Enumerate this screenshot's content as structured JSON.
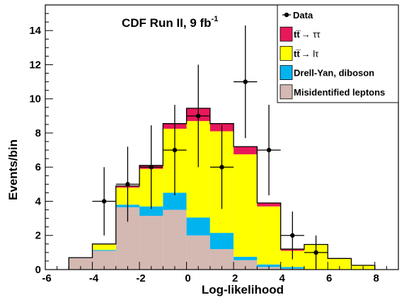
{
  "chart_data": {
    "type": "bar",
    "subtype": "stacked-histogram-with-data-points",
    "title": "CDF Run II, 9 fb",
    "title_superscript": "-1",
    "xlabel": "Log-likelihood",
    "ylabel": "Events/bin",
    "xlim": [
      -6,
      9
    ],
    "ylim": [
      0,
      15.5
    ],
    "xticks": [
      -6,
      -4,
      -2,
      0,
      2,
      4,
      6,
      8
    ],
    "yticks": [
      0,
      2,
      4,
      6,
      8,
      10,
      12,
      14
    ],
    "bin_edges": [
      -5,
      -4,
      -3,
      -2,
      -1,
      0,
      1,
      2,
      3,
      4,
      5,
      6,
      7,
      8
    ],
    "series": [
      {
        "name": "Misidentified leptons",
        "color": "#d4b8b2",
        "values": [
          0.7,
          1.1,
          3.65,
          3.15,
          3.5,
          2.0,
          1.2,
          0.55,
          0.15,
          0.05,
          0.0,
          0.0,
          0.0
        ]
      },
      {
        "name": "Drell-Yan, diboson",
        "color": "#00b4f0",
        "values": [
          0.0,
          0.05,
          0.15,
          0.55,
          1.0,
          1.05,
          0.95,
          0.2,
          0.15,
          0.1,
          0.02,
          0.0,
          0.0
        ]
      },
      {
        "name": "tt̅ → lτ",
        "color": "#ffff00",
        "values": [
          0.0,
          0.35,
          1.0,
          2.2,
          3.75,
          5.65,
          5.95,
          6.0,
          3.4,
          0.95,
          1.45,
          0.65,
          0.25
        ]
      },
      {
        "name": "tt̅ → ττ",
        "color": "#e8185a",
        "values": [
          0.0,
          0.0,
          0.1,
          0.2,
          0.3,
          0.75,
          0.45,
          0.45,
          0.2,
          0.1,
          0.0,
          0.0,
          0.0
        ]
      }
    ],
    "data": {
      "name": "Data",
      "x": [
        -3.5,
        -2.5,
        -1.5,
        -0.5,
        0.5,
        1.5,
        2.5,
        3.5,
        4.5,
        5.5
      ],
      "y": [
        4,
        5,
        6,
        7,
        9,
        6,
        11,
        7,
        2,
        1
      ],
      "yerr": [
        2.0,
        2.2,
        2.45,
        2.65,
        3.0,
        2.45,
        3.3,
        2.65,
        1.4,
        1.0
      ]
    },
    "legend": {
      "position": "top-right",
      "entries": [
        {
          "kind": "marker",
          "label": "Data"
        },
        {
          "kind": "fill",
          "color": "#e8185a",
          "label_main": "tt̅",
          "label_proc": "→ ττ"
        },
        {
          "kind": "fill",
          "color": "#ffff00",
          "label_main": "tt̅",
          "label_proc": "→ lτ"
        },
        {
          "kind": "fill",
          "color": "#00b4f0",
          "label": "Drell-Yan, diboson"
        },
        {
          "kind": "fill",
          "color": "#d4b8b2",
          "label": "Misidentified leptons"
        }
      ]
    }
  }
}
